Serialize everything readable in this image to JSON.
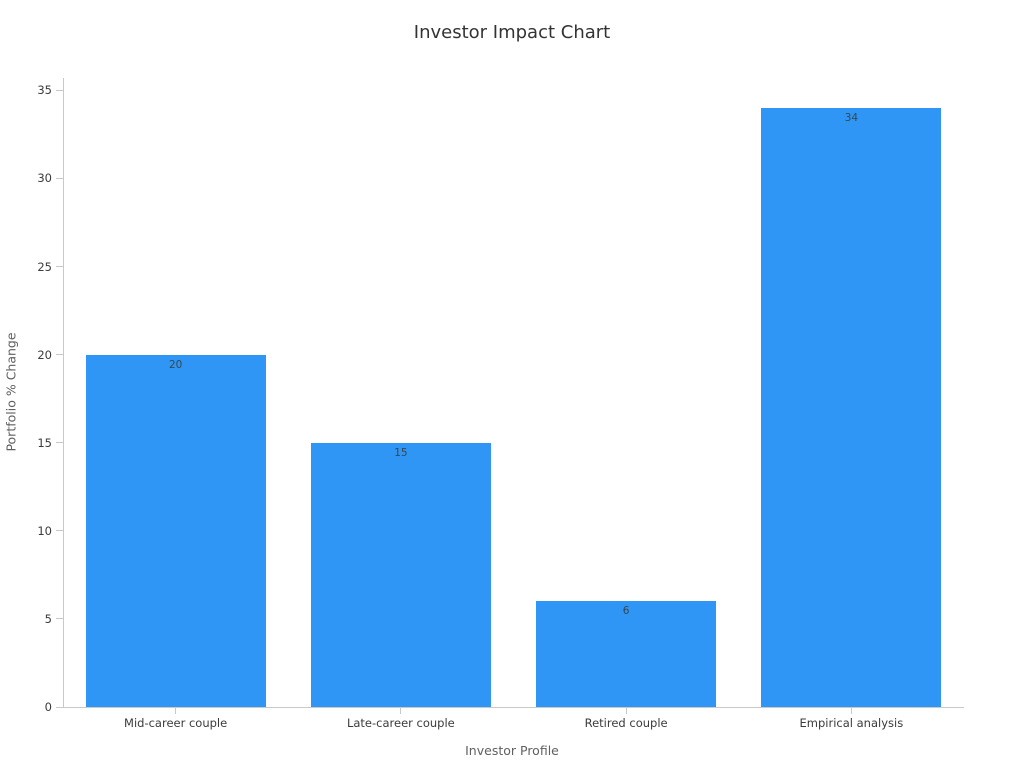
{
  "chart_data": {
    "type": "bar",
    "title": "Investor Impact Chart",
    "xlabel": "Investor Profile",
    "ylabel": "Portfolio % Change",
    "categories": [
      "Mid-career couple",
      "Late-career couple",
      "Retired couple",
      "Empirical analysis"
    ],
    "values": [
      20,
      15,
      6,
      34
    ],
    "value_labels_shown": true,
    "yticks": [
      0,
      5,
      10,
      15,
      20,
      25,
      30,
      35
    ],
    "ylim": [
      0,
      35.7
    ],
    "grid": false,
    "legend_position": "none",
    "bar_color": "#2F96F5",
    "value_label_color": "#37474f",
    "axis_color": "#c9c9c9",
    "tick_label_color": "#3b3b3b",
    "axis_title_color": "#606060",
    "title_color": "#333333",
    "background_color": "#ffffff"
  }
}
